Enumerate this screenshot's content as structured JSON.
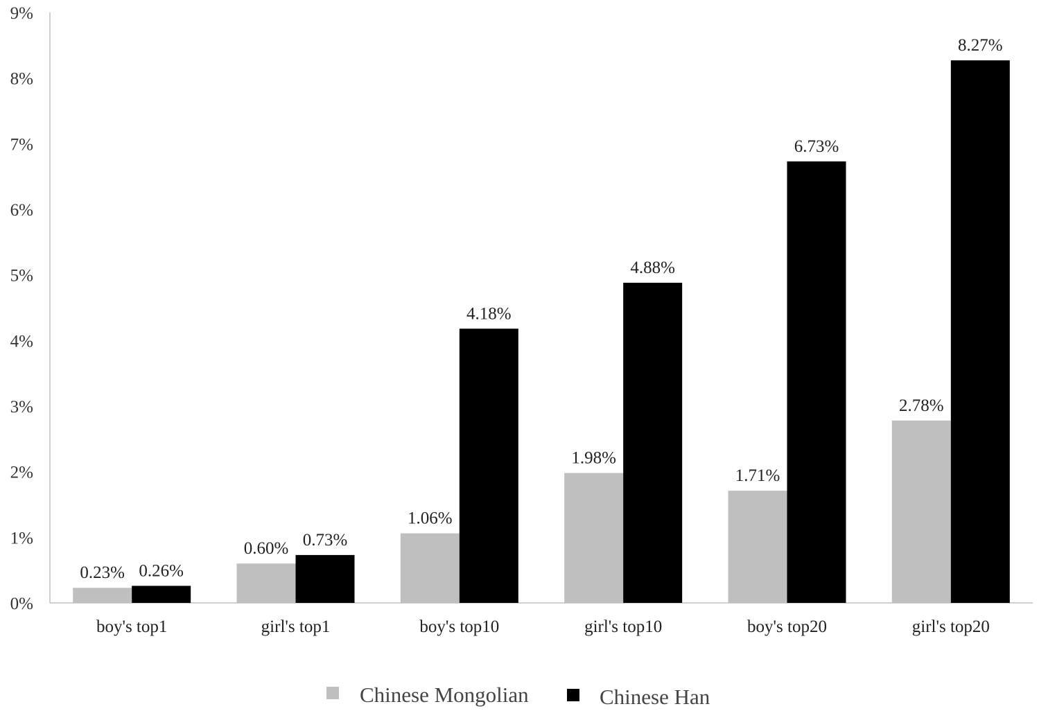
{
  "chart_data": {
    "type": "bar",
    "categories": [
      "boy's top1",
      "girl's top1",
      "boy's top10",
      "girl's top10",
      "boy's top20",
      "girl's top20"
    ],
    "series": [
      {
        "name": "Chinese Mongolian",
        "color": "#bfbfbf",
        "values": [
          0.23,
          0.6,
          1.06,
          1.98,
          1.71,
          2.78
        ],
        "labels": [
          "0.23%",
          "0.60%",
          "1.06%",
          "1.98%",
          "1.71%",
          "2.78%"
        ]
      },
      {
        "name": "Chinese Han",
        "color": "#000000",
        "values": [
          0.26,
          0.73,
          4.18,
          4.88,
          6.73,
          8.27
        ],
        "labels": [
          "0.26%",
          "0.73%",
          "4.18%",
          "4.88%",
          "6.73%",
          "8.27%"
        ]
      }
    ],
    "y_ticks": [
      "0%",
      "1%",
      "2%",
      "3%",
      "4%",
      "5%",
      "6%",
      "7%",
      "8%",
      "9%"
    ],
    "ylim": [
      0,
      9
    ],
    "ylabel_unit": "%",
    "grid": false,
    "legend_position": "bottom-center",
    "title": "",
    "xlabel": "",
    "ylabel": ""
  }
}
